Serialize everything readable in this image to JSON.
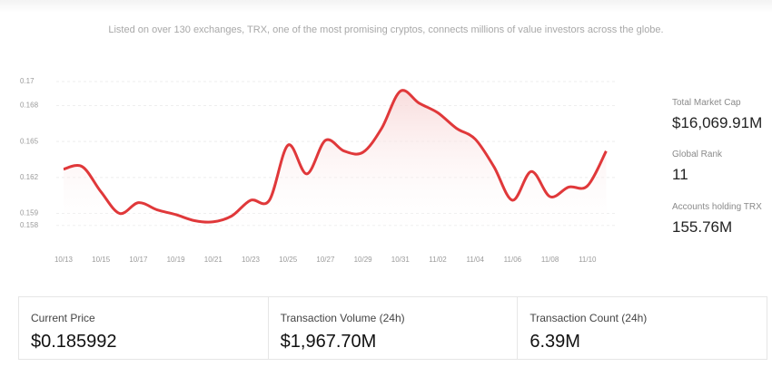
{
  "header": {
    "subtitle": "Listed on over 130 exchanges, TRX, one of the most promising cryptos, connects millions of value investors across the globe."
  },
  "chart": {
    "type": "line",
    "color": "#e0383a",
    "grid": true,
    "categories": [
      "10/13",
      null,
      "10/15",
      null,
      "10/17",
      null,
      "10/19",
      null,
      "10/21",
      null,
      "10/23",
      null,
      "10/25",
      null,
      "10/27",
      null,
      "10/29",
      null,
      "10/31",
      null,
      "11/02",
      null,
      "11/04",
      null,
      "11/06",
      null,
      "11/08",
      null,
      "11/10",
      null
    ],
    "values": [
      0.1627,
      0.1629,
      0.1608,
      0.159,
      0.1599,
      0.1593,
      0.1589,
      0.1584,
      0.1583,
      0.1588,
      0.1601,
      0.1601,
      0.1647,
      0.1623,
      0.1651,
      0.1642,
      0.1641,
      0.1661,
      0.1692,
      0.1682,
      0.1674,
      0.1661,
      0.1652,
      0.1629,
      0.1601,
      0.1625,
      0.1604,
      0.1612,
      0.1613,
      0.1642
    ],
    "ylim": [
      0.157,
      0.17
    ],
    "yticks": [
      0.158,
      0.159,
      0.162,
      0.165,
      0.168,
      0.17
    ]
  },
  "stats": [
    {
      "label": "Total Market Cap",
      "value": "$16,069.91M"
    },
    {
      "label": "Global Rank",
      "value": "11"
    },
    {
      "label": "Accounts holding TRX",
      "value": "155.76M"
    }
  ],
  "cards": [
    {
      "label": "Current Price",
      "value": "$0.185992"
    },
    {
      "label": "Transaction Volume (24h)",
      "value": "$1,967.70M"
    },
    {
      "label": "Transaction Count (24h)",
      "value": "6.39M"
    }
  ]
}
